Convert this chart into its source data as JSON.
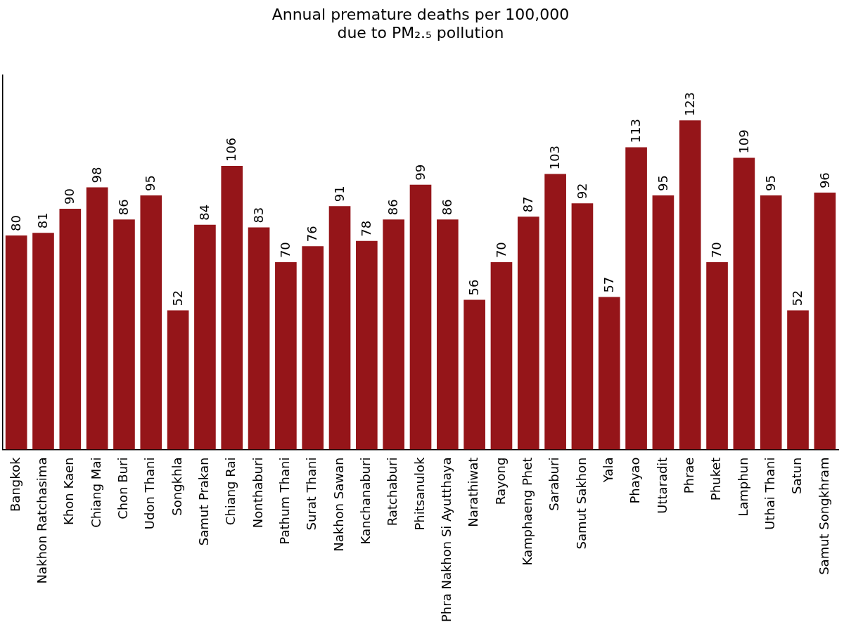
{
  "chart_data": {
    "type": "bar",
    "title": "Annual premature deaths per 100,000\ndue to PM₂.₅ pollution",
    "categories": [
      "Bangkok",
      "Nakhon Ratchasima",
      "Khon Kaen",
      "Chiang Mai",
      "Chon Buri",
      "Udon Thani",
      "Songkhla",
      "Samut Prakan",
      "Chiang Rai",
      "Nonthaburi",
      "Pathum Thani",
      "Surat Thani",
      "Nakhon Sawan",
      "Kanchanaburi",
      "Ratchaburi",
      "Phitsanulok",
      "Phra Nakhon Si Ayutthaya",
      "Narathiwat",
      "Rayong",
      "Kamphaeng Phet",
      "Saraburi",
      "Samut Sakhon",
      "Yala",
      "Phayao",
      "Uttaradit",
      "Phrae",
      "Phuket",
      "Lamphun",
      "Uthai Thani",
      "Satun",
      "Samut Songkhram"
    ],
    "values": [
      80,
      81,
      90,
      98,
      86,
      95,
      52,
      84,
      106,
      83,
      70,
      76,
      91,
      78,
      86,
      99,
      86,
      56,
      70,
      87,
      103,
      92,
      57,
      113,
      95,
      123,
      70,
      109,
      95,
      52,
      96
    ],
    "color": "#951519",
    "data_labels": true,
    "grid": false,
    "legend": false,
    "tick_labels": "x"
  }
}
